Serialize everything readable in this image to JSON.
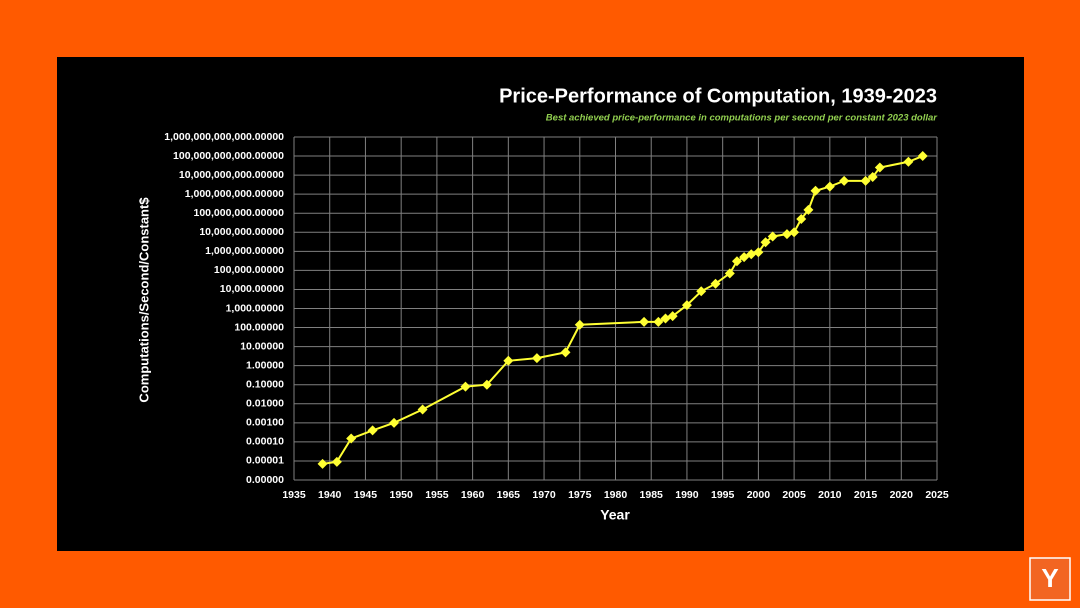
{
  "chart_data": {
    "type": "line",
    "title": "Price-Performance of Computation, 1939-2023",
    "subtitle": "Best achieved price-performance in computations per second per constant 2023 dollar",
    "x_label": "Year",
    "y_label": "Computations/Second/Constant$",
    "yscale": "log",
    "grid": true,
    "color": "#ffff33",
    "x": [
      1939,
      1941,
      1943,
      1946,
      1949,
      1953,
      1959,
      1962,
      1965,
      1969,
      1973,
      1975,
      1984,
      1986,
      1987,
      1988,
      1990,
      1992,
      1994,
      1996,
      1997,
      1998,
      1999,
      2000,
      2001,
      2002,
      2004,
      2005,
      2006,
      2007,
      2008,
      2010,
      2012,
      2015,
      2016,
      2017,
      2021,
      2023
    ],
    "values": [
      7e-06,
      9e-06,
      0.00015,
      0.0004,
      0.001,
      0.005,
      0.08,
      0.1,
      1.8,
      2.5,
      5,
      140,
      200,
      200,
      300,
      400,
      1500,
      8000,
      20000,
      70000,
      300000,
      500000,
      700000,
      900000,
      3000000,
      6000000,
      8000000,
      10000000,
      50000000,
      150000000,
      1500000000,
      2500000000,
      5000000000,
      5000000000,
      8000000000,
      25000000000,
      50000000000,
      100000000000
    ],
    "xlim": [
      1935,
      2025
    ],
    "xticks": [
      1935,
      1940,
      1945,
      1950,
      1955,
      1960,
      1965,
      1970,
      1975,
      1980,
      1985,
      1990,
      1995,
      2000,
      2005,
      2010,
      2015,
      2020,
      2025
    ],
    "ylim": [
      1e-06,
      1000000000000
    ],
    "yticks": [
      {
        "value": 1e-06,
        "label": "0.00000"
      },
      {
        "value": 1e-05,
        "label": "0.00001"
      },
      {
        "value": 0.0001,
        "label": "0.00010"
      },
      {
        "value": 0.001,
        "label": "0.00100"
      },
      {
        "value": 0.01,
        "label": "0.01000"
      },
      {
        "value": 0.1,
        "label": "0.10000"
      },
      {
        "value": 1,
        "label": "1.00000"
      },
      {
        "value": 10,
        "label": "10.00000"
      },
      {
        "value": 100,
        "label": "100.00000"
      },
      {
        "value": 1000,
        "label": "1,000.00000"
      },
      {
        "value": 10000,
        "label": "10,000.00000"
      },
      {
        "value": 100000,
        "label": "100,000.00000"
      },
      {
        "value": 1000000,
        "label": "1,000,000.00000"
      },
      {
        "value": 10000000,
        "label": "10,000,000.00000"
      },
      {
        "value": 100000000,
        "label": "100,000,000.00000"
      },
      {
        "value": 1000000000,
        "label": "1,000,000,000.00000"
      },
      {
        "value": 10000000000,
        "label": "10,000,000,000.00000"
      },
      {
        "value": 100000000000,
        "label": "100,000,000,000.00000"
      },
      {
        "value": 1000000000000,
        "label": "1,000,000,000,000.00000"
      }
    ]
  },
  "logo": "Y"
}
